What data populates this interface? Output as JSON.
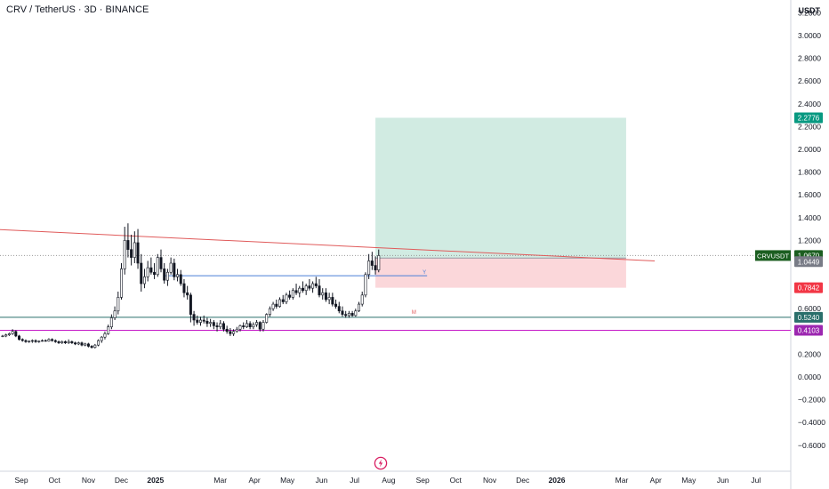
{
  "header": {
    "title": "CRV / TetherUS · 3D · BINANCE",
    "currency": "USDT"
  },
  "chart_data": {
    "type": "candlestick",
    "symbol": "CRVUSDT",
    "exchange": "BINANCE",
    "interval": "3D",
    "ylim": [
      -0.7,
      3.3
    ],
    "y_ticks": [
      "3.2000",
      "3.0000",
      "2.8000",
      "2.6000",
      "2.4000",
      "2.2000",
      "2.0000",
      "1.8000",
      "1.6000",
      "1.4000",
      "1.2000",
      "0.6000",
      "0.4000",
      "0.2000",
      "0.0000",
      "−0.2000",
      "−0.4000",
      "−0.6000"
    ],
    "x_ticks": [
      "Sep",
      "Oct",
      "Nov",
      "Dec",
      "2025",
      "Mar",
      "Apr",
      "May",
      "Jun",
      "Jul",
      "Aug",
      "Sep",
      "Oct",
      "Nov",
      "Dec",
      "2026",
      "Mar",
      "Apr",
      "May",
      "Jun",
      "Jul"
    ],
    "x_tick_dates": [
      "2024-09-01",
      "2024-10-01",
      "2024-11-01",
      "2024-12-01",
      "2025-01-01",
      "2025-03-01",
      "2025-04-01",
      "2025-05-01",
      "2025-06-01",
      "2025-07-01",
      "2025-08-01",
      "2025-09-01",
      "2025-10-01",
      "2025-11-01",
      "2025-12-01",
      "2026-01-01",
      "2026-03-01",
      "2026-04-01",
      "2026-05-01",
      "2026-06-01",
      "2026-07-01"
    ],
    "price_labels": [
      {
        "label": "2.2776",
        "value": 2.2776,
        "color": "#089981",
        "name": "target"
      },
      {
        "label": "CRVUSDT",
        "value": 1.067,
        "color": "#1b5e20",
        "name": "symbol"
      },
      {
        "label": "1.0670",
        "value": 1.067,
        "color": "#1b5e20",
        "name": "last"
      },
      {
        "label": "1.0449",
        "value": 1.0449,
        "color": "#787b86",
        "name": "entry"
      },
      {
        "label": "0.7842",
        "value": 0.7842,
        "color": "#f23645",
        "name": "stop"
      },
      {
        "label": "0.5240",
        "value": 0.524,
        "color": "#2a6f6b",
        "name": "support-line"
      },
      {
        "label": "0.4103",
        "value": 0.4103,
        "color": "#9c27b0",
        "name": "monthly-level"
      }
    ],
    "position": {
      "start": "2025-07-20",
      "end": "2026-03-05",
      "entry": 1.0449,
      "target": 2.2776,
      "stop": 0.7842,
      "profit_color": "#d1ebe2",
      "loss_color": "#fbd7da"
    },
    "levels": [
      {
        "name": "support-line",
        "value": 0.524,
        "color": "#2a6f6b",
        "label": ""
      },
      {
        "name": "monthly-level",
        "value": 0.4103,
        "color": "#c51cc8",
        "label": ""
      },
      {
        "name": "last-price-line",
        "value": 1.067,
        "color": "#999999",
        "label": "",
        "dotted": true
      }
    ],
    "trendline": {
      "start": "2024-08-01",
      "start_value": 1.3,
      "end": "2026-03-31",
      "end_value": 1.02,
      "color": "#e05a5a"
    },
    "yearly_level": {
      "start": "2025-01-10",
      "end": "2025-09-05",
      "value": 0.89,
      "color": "#4a7fd8",
      "label": "Y"
    },
    "monthly_label": {
      "date": "2025-08-22",
      "value": 0.555,
      "label": "M",
      "color": "#e05a5a"
    },
    "candles": [
      [
        "2024-08-15",
        0.36,
        0.37,
        0.35,
        0.36
      ],
      [
        "2024-08-18",
        0.36,
        0.38,
        0.35,
        0.37
      ],
      [
        "2024-08-21",
        0.37,
        0.39,
        0.36,
        0.38
      ],
      [
        "2024-08-24",
        0.38,
        0.42,
        0.37,
        0.4
      ],
      [
        "2024-08-27",
        0.4,
        0.41,
        0.35,
        0.36
      ],
      [
        "2024-08-30",
        0.36,
        0.37,
        0.32,
        0.33
      ],
      [
        "2024-09-02",
        0.33,
        0.34,
        0.31,
        0.32
      ],
      [
        "2024-09-05",
        0.32,
        0.33,
        0.3,
        0.31
      ],
      [
        "2024-09-08",
        0.31,
        0.32,
        0.3,
        0.315
      ],
      [
        "2024-09-11",
        0.315,
        0.33,
        0.3,
        0.32
      ],
      [
        "2024-09-14",
        0.32,
        0.33,
        0.3,
        0.31
      ],
      [
        "2024-09-17",
        0.31,
        0.32,
        0.3,
        0.315
      ],
      [
        "2024-09-20",
        0.315,
        0.33,
        0.31,
        0.32
      ],
      [
        "2024-09-23",
        0.32,
        0.33,
        0.31,
        0.315
      ],
      [
        "2024-09-26",
        0.315,
        0.34,
        0.31,
        0.33
      ],
      [
        "2024-09-29",
        0.33,
        0.34,
        0.31,
        0.32
      ],
      [
        "2024-10-02",
        0.32,
        0.33,
        0.3,
        0.31
      ],
      [
        "2024-10-05",
        0.31,
        0.32,
        0.29,
        0.3
      ],
      [
        "2024-10-08",
        0.3,
        0.32,
        0.29,
        0.31
      ],
      [
        "2024-10-11",
        0.31,
        0.32,
        0.29,
        0.3
      ],
      [
        "2024-10-14",
        0.3,
        0.33,
        0.29,
        0.31
      ],
      [
        "2024-10-17",
        0.31,
        0.32,
        0.29,
        0.3
      ],
      [
        "2024-10-20",
        0.3,
        0.31,
        0.28,
        0.29
      ],
      [
        "2024-10-23",
        0.29,
        0.31,
        0.28,
        0.3
      ],
      [
        "2024-10-26",
        0.3,
        0.31,
        0.27,
        0.28
      ],
      [
        "2024-10-29",
        0.28,
        0.3,
        0.27,
        0.29
      ],
      [
        "2024-11-01",
        0.29,
        0.3,
        0.26,
        0.27
      ],
      [
        "2024-11-04",
        0.27,
        0.28,
        0.25,
        0.26
      ],
      [
        "2024-11-07",
        0.26,
        0.29,
        0.25,
        0.28
      ],
      [
        "2024-11-10",
        0.28,
        0.33,
        0.27,
        0.32
      ],
      [
        "2024-11-13",
        0.32,
        0.36,
        0.3,
        0.35
      ],
      [
        "2024-11-16",
        0.35,
        0.4,
        0.33,
        0.38
      ],
      [
        "2024-11-19",
        0.38,
        0.46,
        0.37,
        0.44
      ],
      [
        "2024-11-22",
        0.44,
        0.55,
        0.42,
        0.52
      ],
      [
        "2024-11-25",
        0.52,
        0.62,
        0.5,
        0.58
      ],
      [
        "2024-11-28",
        0.58,
        0.75,
        0.55,
        0.7
      ],
      [
        "2024-12-01",
        0.7,
        1.0,
        0.68,
        0.95
      ],
      [
        "2024-12-04",
        0.95,
        1.32,
        0.9,
        1.2
      ],
      [
        "2024-12-07",
        1.2,
        1.35,
        1.05,
        1.12
      ],
      [
        "2024-12-10",
        1.12,
        1.25,
        0.98,
        1.05
      ],
      [
        "2024-12-13",
        1.05,
        1.28,
        1.0,
        1.18
      ],
      [
        "2024-12-16",
        1.18,
        1.3,
        0.95,
        1.0
      ],
      [
        "2024-12-19",
        1.0,
        1.08,
        0.75,
        0.82
      ],
      [
        "2024-12-22",
        0.82,
        0.95,
        0.78,
        0.88
      ],
      [
        "2024-12-25",
        0.88,
        1.02,
        0.84,
        0.96
      ],
      [
        "2024-12-28",
        0.96,
        1.05,
        0.9,
        0.92
      ],
      [
        "2024-12-31",
        0.92,
        1.0,
        0.86,
        0.9
      ],
      [
        "2025-01-03",
        0.9,
        1.08,
        0.88,
        1.05
      ],
      [
        "2025-01-06",
        1.05,
        1.12,
        0.92,
        0.95
      ],
      [
        "2025-01-09",
        0.95,
        1.0,
        0.82,
        0.85
      ],
      [
        "2025-01-12",
        0.85,
        0.95,
        0.8,
        0.92
      ],
      [
        "2025-01-15",
        0.92,
        1.05,
        0.9,
        1.0
      ],
      [
        "2025-01-18",
        1.0,
        1.04,
        0.85,
        0.88
      ],
      [
        "2025-01-21",
        0.88,
        0.95,
        0.84,
        0.9
      ],
      [
        "2025-01-24",
        0.9,
        0.94,
        0.8,
        0.82
      ],
      [
        "2025-01-27",
        0.82,
        0.86,
        0.7,
        0.74
      ],
      [
        "2025-01-30",
        0.74,
        0.8,
        0.68,
        0.72
      ],
      [
        "2025-02-02",
        0.72,
        0.74,
        0.48,
        0.55
      ],
      [
        "2025-02-05",
        0.55,
        0.58,
        0.45,
        0.5
      ],
      [
        "2025-02-08",
        0.5,
        0.54,
        0.46,
        0.48
      ],
      [
        "2025-02-11",
        0.48,
        0.53,
        0.45,
        0.5
      ],
      [
        "2025-02-14",
        0.5,
        0.54,
        0.47,
        0.49
      ],
      [
        "2025-02-17",
        0.49,
        0.52,
        0.44,
        0.47
      ],
      [
        "2025-02-20",
        0.47,
        0.51,
        0.44,
        0.48
      ],
      [
        "2025-02-23",
        0.48,
        0.5,
        0.42,
        0.45
      ],
      [
        "2025-02-26",
        0.45,
        0.48,
        0.4,
        0.44
      ],
      [
        "2025-03-01",
        0.44,
        0.5,
        0.42,
        0.47
      ],
      [
        "2025-03-04",
        0.47,
        0.49,
        0.4,
        0.42
      ],
      [
        "2025-03-07",
        0.42,
        0.45,
        0.38,
        0.4
      ],
      [
        "2025-03-10",
        0.4,
        0.43,
        0.36,
        0.38
      ],
      [
        "2025-03-13",
        0.38,
        0.42,
        0.36,
        0.4
      ],
      [
        "2025-03-16",
        0.4,
        0.44,
        0.39,
        0.42
      ],
      [
        "2025-03-19",
        0.42,
        0.46,
        0.4,
        0.45
      ],
      [
        "2025-03-22",
        0.45,
        0.48,
        0.42,
        0.44
      ],
      [
        "2025-03-25",
        0.44,
        0.5,
        0.43,
        0.47
      ],
      [
        "2025-03-28",
        0.47,
        0.49,
        0.42,
        0.44
      ],
      [
        "2025-03-31",
        0.44,
        0.48,
        0.42,
        0.46
      ],
      [
        "2025-04-03",
        0.46,
        0.5,
        0.44,
        0.48
      ],
      [
        "2025-04-06",
        0.48,
        0.49,
        0.4,
        0.42
      ],
      [
        "2025-04-09",
        0.42,
        0.5,
        0.4,
        0.48
      ],
      [
        "2025-04-12",
        0.48,
        0.56,
        0.47,
        0.55
      ],
      [
        "2025-04-15",
        0.55,
        0.62,
        0.53,
        0.6
      ],
      [
        "2025-04-18",
        0.6,
        0.66,
        0.58,
        0.64
      ],
      [
        "2025-04-21",
        0.64,
        0.68,
        0.6,
        0.62
      ],
      [
        "2025-04-24",
        0.62,
        0.7,
        0.61,
        0.68
      ],
      [
        "2025-04-27",
        0.68,
        0.72,
        0.64,
        0.66
      ],
      [
        "2025-04-30",
        0.66,
        0.74,
        0.64,
        0.72
      ],
      [
        "2025-05-03",
        0.72,
        0.76,
        0.68,
        0.7
      ],
      [
        "2025-05-06",
        0.7,
        0.78,
        0.68,
        0.76
      ],
      [
        "2025-05-09",
        0.76,
        0.82,
        0.72,
        0.74
      ],
      [
        "2025-05-12",
        0.74,
        0.8,
        0.7,
        0.78
      ],
      [
        "2025-05-15",
        0.78,
        0.84,
        0.74,
        0.76
      ],
      [
        "2025-05-18",
        0.76,
        0.82,
        0.72,
        0.8
      ],
      [
        "2025-05-21",
        0.8,
        0.86,
        0.76,
        0.78
      ],
      [
        "2025-05-24",
        0.78,
        0.84,
        0.74,
        0.82
      ],
      [
        "2025-05-27",
        0.82,
        0.88,
        0.78,
        0.8
      ],
      [
        "2025-05-30",
        0.8,
        0.86,
        0.7,
        0.72
      ],
      [
        "2025-06-02",
        0.72,
        0.78,
        0.68,
        0.74
      ],
      [
        "2025-06-05",
        0.74,
        0.78,
        0.66,
        0.68
      ],
      [
        "2025-06-08",
        0.68,
        0.74,
        0.64,
        0.7
      ],
      [
        "2025-06-11",
        0.7,
        0.74,
        0.62,
        0.64
      ],
      [
        "2025-06-14",
        0.64,
        0.68,
        0.6,
        0.62
      ],
      [
        "2025-06-17",
        0.62,
        0.66,
        0.56,
        0.58
      ],
      [
        "2025-06-20",
        0.58,
        0.62,
        0.53,
        0.55
      ],
      [
        "2025-06-23",
        0.55,
        0.58,
        0.52,
        0.54
      ],
      [
        "2025-06-26",
        0.54,
        0.58,
        0.52,
        0.56
      ],
      [
        "2025-06-29",
        0.56,
        0.58,
        0.53,
        0.54
      ],
      [
        "2025-07-02",
        0.54,
        0.6,
        0.53,
        0.58
      ],
      [
        "2025-07-05",
        0.58,
        0.66,
        0.57,
        0.64
      ],
      [
        "2025-07-08",
        0.64,
        0.75,
        0.62,
        0.72
      ],
      [
        "2025-07-11",
        0.72,
        0.92,
        0.7,
        0.9
      ],
      [
        "2025-07-14",
        0.9,
        1.08,
        0.86,
        1.02
      ],
      [
        "2025-07-17",
        1.02,
        1.1,
        0.94,
        0.98
      ],
      [
        "2025-07-20",
        0.98,
        1.06,
        0.9,
        0.94
      ],
      [
        "2025-07-23",
        0.94,
        1.12,
        0.92,
        1.067
      ]
    ]
  }
}
